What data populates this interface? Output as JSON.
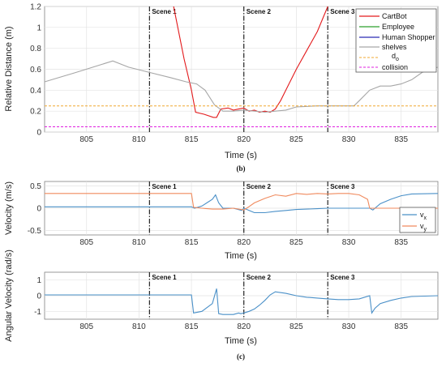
{
  "chart_data": [
    {
      "type": "line",
      "ylabel": "Relative Distance (m)",
      "xlabel": "Time (s)",
      "caption": "(b)",
      "xlim": [
        801,
        838.5
      ],
      "ylim": [
        0,
        1.2
      ],
      "xticks": [
        805,
        810,
        815,
        820,
        825,
        830,
        835
      ],
      "yticks": [
        0,
        0.2,
        0.4,
        0.6,
        0.8,
        1,
        1.2
      ],
      "ytick_labels": [
        "0",
        "0.2",
        "0.4",
        "0.6",
        "0.8",
        "1",
        "1.2"
      ],
      "grid": true,
      "legend_position": "top-right",
      "scenes": [
        {
          "label": "Scene 1",
          "x": 811
        },
        {
          "label": "Scene 2",
          "x": 820
        },
        {
          "label": "Scene 3",
          "x": 828
        }
      ],
      "series": [
        {
          "name": "CartBot",
          "color": "#e31a1c",
          "x": [
            813.3,
            814.3,
            815.0,
            815.4,
            816.2,
            817.1,
            817.4,
            817.8,
            818.5,
            819.0,
            819.5,
            820.0,
            820.5,
            821.0,
            821.5,
            822.0,
            822.5,
            823.0,
            823.5,
            824.0,
            825.0,
            826.0,
            827.0,
            828.0
          ],
          "y": [
            1.2,
            0.7,
            0.4,
            0.19,
            0.17,
            0.14,
            0.14,
            0.22,
            0.23,
            0.21,
            0.22,
            0.23,
            0.2,
            0.21,
            0.19,
            0.2,
            0.19,
            0.22,
            0.3,
            0.4,
            0.6,
            0.78,
            0.96,
            1.2
          ]
        },
        {
          "name": "Employee",
          "color": "#2ca02c",
          "x": [],
          "y": []
        },
        {
          "name": "Human Shopper",
          "color": "#2b2bb5",
          "x": [],
          "y": []
        },
        {
          "name": "shelves",
          "color": "#a6a6a6",
          "x": [
            801,
            804,
            807.5,
            809,
            811,
            813,
            814.5,
            815.5,
            816.3,
            817.2,
            818,
            819,
            820,
            821,
            822,
            823,
            824,
            825,
            827,
            829,
            830.5,
            831,
            832,
            833,
            834,
            835,
            836,
            837,
            838.5
          ],
          "y": [
            0.48,
            0.57,
            0.68,
            0.62,
            0.57,
            0.52,
            0.48,
            0.46,
            0.4,
            0.26,
            0.2,
            0.2,
            0.21,
            0.2,
            0.19,
            0.2,
            0.21,
            0.24,
            0.25,
            0.25,
            0.25,
            0.3,
            0.4,
            0.44,
            0.44,
            0.46,
            0.5,
            0.57,
            0.62
          ]
        },
        {
          "name": "d_o",
          "color": "#f0a830",
          "dashed": true,
          "x": [
            801,
            838.5
          ],
          "y": [
            0.25,
            0.25
          ]
        },
        {
          "name": "collision",
          "color": "#e020e0",
          "dashed": true,
          "x": [
            801,
            838.5
          ],
          "y": [
            0.05,
            0.05
          ]
        }
      ],
      "legend": [
        "CartBot",
        "Employee",
        "Human Shopper",
        "shelves",
        "d",
        "o",
        "collision"
      ]
    },
    {
      "type": "line",
      "ylabel": "Velocity (m/s)",
      "xlabel": "Time (s)",
      "xlim": [
        801,
        838.5
      ],
      "ylim": [
        -0.6,
        0.6
      ],
      "xticks": [
        805,
        810,
        815,
        820,
        825,
        830,
        835
      ],
      "yticks": [
        -0.5,
        0,
        0.5
      ],
      "ytick_labels": [
        "-0.5",
        "0",
        "0.5"
      ],
      "grid": true,
      "legend_position": "bottom-right",
      "scenes": [
        {
          "label": "Scene 1",
          "x": 811
        },
        {
          "label": "Scene 2",
          "x": 820
        },
        {
          "label": "Scene 3",
          "x": 828
        }
      ],
      "series": [
        {
          "name": "v_x",
          "color": "#4a90c8",
          "x": [
            801,
            815,
            815.3,
            816,
            817,
            817.3,
            817.6,
            818,
            819,
            819.8,
            820,
            820.5,
            821,
            822,
            823,
            824,
            825,
            826,
            827,
            828,
            829,
            830,
            831,
            832,
            832.3,
            833,
            834,
            835,
            836,
            838.5
          ],
          "y": [
            0.03,
            0.03,
            0.0,
            0.05,
            0.2,
            0.3,
            0.12,
            0.0,
            0.0,
            -0.05,
            0.0,
            -0.05,
            -0.1,
            -0.1,
            -0.07,
            -0.05,
            -0.03,
            -0.02,
            -0.01,
            0.0,
            0.0,
            0.0,
            0.0,
            0.0,
            -0.04,
            0.1,
            0.2,
            0.28,
            0.32,
            0.33
          ]
        },
        {
          "name": "v_y",
          "color": "#f08a5d",
          "x": [
            801,
            815,
            815.2,
            816,
            817,
            818,
            819,
            820,
            820.4,
            821,
            822,
            823,
            824,
            825,
            826,
            827,
            828,
            829,
            830,
            831,
            831.8,
            832,
            833,
            834,
            835,
            836,
            838.5
          ],
          "y": [
            0.33,
            0.33,
            0.02,
            0.0,
            -0.02,
            -0.02,
            0.0,
            -0.04,
            0.02,
            0.12,
            0.22,
            0.3,
            0.27,
            0.33,
            0.31,
            0.33,
            0.32,
            0.33,
            0.33,
            0.3,
            0.2,
            0.0,
            0.0,
            0.0,
            0.0,
            0.0,
            0.0
          ]
        }
      ],
      "legend": [
        "v",
        "x",
        "v",
        "y"
      ]
    },
    {
      "type": "line",
      "ylabel": "Angular Velocity (rad/s)",
      "xlabel": "Time (s)",
      "caption": "(c)",
      "xlim": [
        801,
        838.5
      ],
      "ylim": [
        -1.5,
        1.5
      ],
      "xticks": [
        805,
        810,
        815,
        820,
        825,
        830,
        835
      ],
      "yticks": [
        -1,
        0,
        1
      ],
      "ytick_labels": [
        "-1",
        "0",
        "1"
      ],
      "grid": true,
      "scenes": [
        {
          "label": "Scene 1",
          "x": 811
        },
        {
          "label": "Scene 2",
          "x": 820
        },
        {
          "label": "Scene 3",
          "x": 828
        }
      ],
      "series": [
        {
          "name": "angular velocity",
          "color": "#4a90c8",
          "x": [
            801,
            815,
            815.2,
            816,
            817,
            817.4,
            817.6,
            818,
            819,
            819.5,
            819.7,
            820,
            820.5,
            821,
            821.5,
            822,
            822.5,
            823,
            824,
            825,
            826,
            827,
            828,
            829,
            830,
            831,
            832,
            832.2,
            832.5,
            833,
            834,
            835,
            836,
            838.5
          ],
          "y": [
            0.05,
            0.05,
            -1.1,
            -1.0,
            -0.5,
            0.45,
            -1.15,
            -1.2,
            -1.2,
            -1.1,
            -1.15,
            -1.1,
            -1.0,
            -0.85,
            -0.6,
            -0.3,
            0.05,
            0.25,
            0.15,
            0.0,
            -0.1,
            -0.15,
            -0.2,
            -0.25,
            -0.25,
            -0.2,
            0.0,
            -1.1,
            -0.8,
            -0.5,
            -0.3,
            -0.15,
            -0.05,
            0.0
          ]
        }
      ]
    }
  ]
}
